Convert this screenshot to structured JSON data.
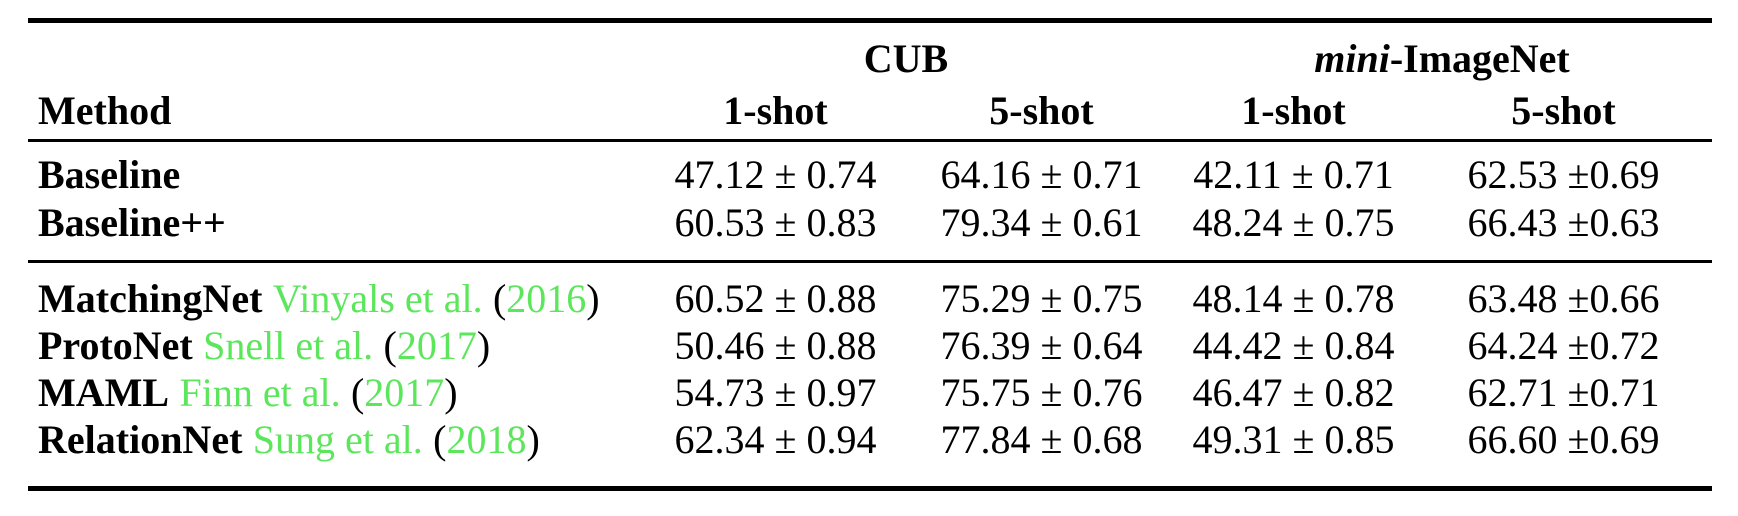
{
  "palette": {
    "background": "#ffffff",
    "text": "#000000",
    "citation": "#5CE65C",
    "rule": "#000000"
  },
  "table": {
    "group_headers": {
      "cub": "CUB",
      "mini_italic": "mini",
      "mini_rest": "-ImageNet"
    },
    "method_header": "Method",
    "subheaders": {
      "cub_1shot": "1-shot",
      "cub_5shot": "5-shot",
      "mini_1shot": "1-shot",
      "mini_5shot": "5-shot"
    },
    "punctuation": {
      "open_paren": "(",
      "close_paren": ")"
    },
    "rows": [
      {
        "method": "Baseline",
        "cub_1shot": "47.12 ± 0.74",
        "cub_5shot": "64.16 ± 0.71",
        "mini_1shot": "42.11 ± 0.71",
        "mini_5shot": "62.53 ±0.69"
      },
      {
        "method": "Baseline++",
        "cub_1shot": "60.53 ± 0.83",
        "cub_5shot": "79.34 ± 0.61",
        "mini_1shot": "48.24 ± 0.75",
        "mini_5shot": "66.43 ±0.63"
      },
      {
        "method": "MatchingNet",
        "cite_authors": "Vinyals et al.",
        "cite_year": "2016",
        "cub_1shot": "60.52 ± 0.88",
        "cub_5shot": "75.29 ± 0.75",
        "mini_1shot": "48.14 ± 0.78",
        "mini_5shot": "63.48 ±0.66"
      },
      {
        "method": "ProtoNet",
        "cite_authors": "Snell et al.",
        "cite_year": "2017",
        "cub_1shot": "50.46 ± 0.88",
        "cub_5shot": "76.39 ± 0.64",
        "mini_1shot": "44.42 ± 0.84",
        "mini_5shot": "64.24 ±0.72"
      },
      {
        "method": "MAML",
        "cite_authors": "Finn et al.",
        "cite_year": "2017",
        "cub_1shot": "54.73 ± 0.97",
        "cub_5shot": "75.75 ± 0.76",
        "mini_1shot": "46.47 ± 0.82",
        "mini_5shot": "62.71 ±0.71"
      },
      {
        "method": "RelationNet",
        "cite_authors": "Sung et al.",
        "cite_year": "2018",
        "cub_1shot": "62.34 ± 0.94",
        "cub_5shot": "77.84 ± 0.68",
        "mini_1shot": "49.31 ± 0.85",
        "mini_5shot": "66.60 ±0.69"
      }
    ]
  }
}
